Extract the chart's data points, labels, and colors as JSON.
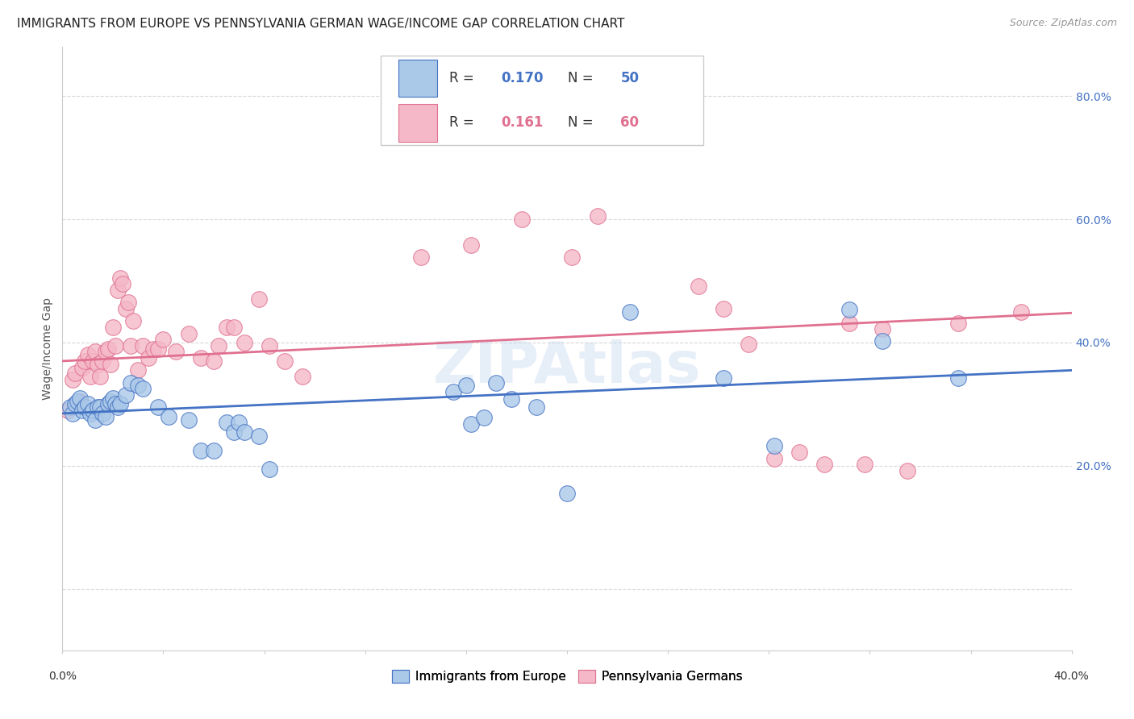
{
  "title": "IMMIGRANTS FROM EUROPE VS PENNSYLVANIA GERMAN WAGE/INCOME GAP CORRELATION CHART",
  "source": "Source: ZipAtlas.com",
  "ylabel": "Wage/Income Gap",
  "xlim": [
    0.0,
    0.4
  ],
  "ylim": [
    -0.1,
    0.88
  ],
  "yticks": [
    0.0,
    0.2,
    0.4,
    0.6,
    0.8
  ],
  "ytick_labels": [
    "",
    "20.0%",
    "40.0%",
    "60.0%",
    "80.0%"
  ],
  "xtick_bottom_left": "0.0%",
  "xtick_bottom_right": "40.0%",
  "blue_R": "0.170",
  "blue_N": "50",
  "pink_R": "0.161",
  "pink_N": "60",
  "blue_color": "#aac8e8",
  "blue_line_color": "#4472c4",
  "pink_color": "#f4b8c8",
  "pink_line_color": "#e07090",
  "legend_label_blue": "Immigrants from Europe",
  "legend_label_pink": "Pennsylvania Germans",
  "blue_scatter_x": [
    0.003,
    0.004,
    0.005,
    0.006,
    0.007,
    0.008,
    0.009,
    0.01,
    0.011,
    0.012,
    0.013,
    0.014,
    0.015,
    0.016,
    0.017,
    0.018,
    0.019,
    0.02,
    0.021,
    0.022,
    0.023,
    0.025,
    0.027,
    0.03,
    0.032,
    0.038,
    0.042,
    0.05,
    0.055,
    0.06,
    0.065,
    0.068,
    0.07,
    0.072,
    0.078,
    0.082,
    0.155,
    0.16,
    0.162,
    0.167,
    0.172,
    0.178,
    0.188,
    0.2,
    0.225,
    0.262,
    0.282,
    0.312,
    0.325,
    0.355
  ],
  "blue_scatter_y": [
    0.295,
    0.285,
    0.3,
    0.305,
    0.31,
    0.29,
    0.295,
    0.3,
    0.285,
    0.29,
    0.275,
    0.295,
    0.295,
    0.285,
    0.28,
    0.3,
    0.305,
    0.31,
    0.3,
    0.295,
    0.3,
    0.315,
    0.335,
    0.33,
    0.325,
    0.295,
    0.28,
    0.275,
    0.225,
    0.225,
    0.27,
    0.255,
    0.27,
    0.255,
    0.248,
    0.195,
    0.32,
    0.33,
    0.268,
    0.278,
    0.335,
    0.308,
    0.295,
    0.155,
    0.45,
    0.342,
    0.232,
    0.453,
    0.402,
    0.342
  ],
  "pink_scatter_x": [
    0.002,
    0.004,
    0.005,
    0.007,
    0.008,
    0.009,
    0.01,
    0.011,
    0.012,
    0.013,
    0.014,
    0.015,
    0.016,
    0.017,
    0.018,
    0.019,
    0.02,
    0.021,
    0.022,
    0.023,
    0.024,
    0.025,
    0.026,
    0.027,
    0.028,
    0.03,
    0.032,
    0.034,
    0.036,
    0.038,
    0.04,
    0.045,
    0.05,
    0.055,
    0.06,
    0.062,
    0.065,
    0.068,
    0.072,
    0.078,
    0.082,
    0.088,
    0.095,
    0.142,
    0.162,
    0.182,
    0.202,
    0.212,
    0.252,
    0.262,
    0.272,
    0.282,
    0.292,
    0.302,
    0.312,
    0.318,
    0.325,
    0.335,
    0.355,
    0.38
  ],
  "pink_scatter_y": [
    0.29,
    0.34,
    0.35,
    0.305,
    0.36,
    0.37,
    0.38,
    0.345,
    0.37,
    0.385,
    0.365,
    0.345,
    0.37,
    0.385,
    0.39,
    0.365,
    0.425,
    0.395,
    0.485,
    0.505,
    0.495,
    0.455,
    0.465,
    0.395,
    0.435,
    0.355,
    0.395,
    0.375,
    0.39,
    0.39,
    0.405,
    0.385,
    0.415,
    0.375,
    0.37,
    0.395,
    0.425,
    0.425,
    0.4,
    0.47,
    0.395,
    0.37,
    0.345,
    0.538,
    0.558,
    0.6,
    0.538,
    0.605,
    0.492,
    0.455,
    0.398,
    0.212,
    0.222,
    0.202,
    0.432,
    0.202,
    0.422,
    0.192,
    0.432,
    0.45
  ],
  "blue_trend_x": [
    0.0,
    0.4
  ],
  "blue_trend_y": [
    0.285,
    0.355
  ],
  "pink_trend_x": [
    0.0,
    0.4
  ],
  "pink_trend_y": [
    0.37,
    0.448
  ],
  "watermark": "ZIPAtlas",
  "grid_color": "#d8d8d8",
  "background_color": "#ffffff",
  "title_fontsize": 11,
  "source_fontsize": 9,
  "axis_ylabel_fontsize": 10,
  "tick_fontsize": 10,
  "legend_fontsize": 12
}
